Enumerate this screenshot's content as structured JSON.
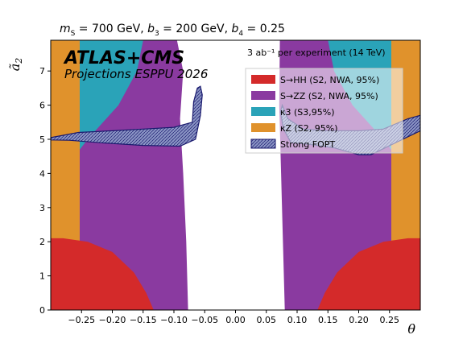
{
  "header": {
    "params": "mS = 700 GeV, b3 = 200 GeV, b4 = 0.25"
  },
  "colors": {
    "s_hh": "#d42a2a",
    "s_zz": "#8a3aa0",
    "kappa3": "#2aa3b8",
    "kappaz": "#e0922c",
    "fopt_fill": "#8a94c4",
    "fopt_edge": "#1a1a6e"
  },
  "chart_data": {
    "type": "area",
    "title": "mS = 700 GeV, b3 = 200 GeV, b4 = 0.25",
    "experiment": "ATLAS+CMS",
    "subtitle": "Projections ESPPU 2026",
    "lumi_note": "3 ab⁻¹ per experiment (14 TeV)",
    "xlabel": "θ",
    "ylabel": "a2",
    "xlim": [
      -0.3,
      0.3
    ],
    "ylim": [
      0,
      7.9
    ],
    "xticks": [
      -0.25,
      -0.2,
      -0.15,
      -0.1,
      -0.05,
      0.0,
      0.05,
      0.1,
      0.15,
      0.2,
      0.25
    ],
    "xtick_labels": [
      "−0.25",
      "−0.20",
      "−0.15",
      "−0.10",
      "−0.05",
      "0.00",
      "0.05",
      "0.10",
      "0.15",
      "0.20",
      "0.25"
    ],
    "yticks": [
      0,
      1,
      2,
      3,
      4,
      5,
      6,
      7
    ],
    "ytick_labels": [
      "0",
      "1",
      "2",
      "3",
      "4",
      "5",
      "6",
      "7"
    ],
    "legend_position": "top-right",
    "series": [
      {
        "key": "s_zz",
        "name": "S→ZZ (S2, NWA, 95%)",
        "regions": [
          [
            [
              -0.3,
              0
            ],
            [
              -0.077,
              0
            ],
            [
              -0.08,
              2
            ],
            [
              -0.085,
              4
            ],
            [
              -0.09,
              5.6
            ],
            [
              -0.085,
              7
            ],
            [
              -0.095,
              7.9
            ],
            [
              -0.3,
              7.9
            ]
          ],
          [
            [
              0.3,
              0
            ],
            [
              0.08,
              0
            ],
            [
              0.077,
              2
            ],
            [
              0.074,
              4
            ],
            [
              0.071,
              6
            ],
            [
              0.072,
              7.9
            ],
            [
              0.3,
              7.9
            ]
          ]
        ]
      },
      {
        "key": "kappa3",
        "name": "κ3 (S3,95%)",
        "regions": [
          [
            [
              -0.3,
              7.9
            ],
            [
              -0.15,
              7.9
            ],
            [
              -0.16,
              7
            ],
            [
              -0.19,
              6
            ],
            [
              -0.24,
              5
            ],
            [
              -0.27,
              4.3
            ],
            [
              -0.3,
              4
            ]
          ],
          [
            [
              0.3,
              7.9
            ],
            [
              0.15,
              7.9
            ],
            [
              0.16,
              7
            ],
            [
              0.19,
              6
            ],
            [
              0.24,
              5
            ],
            [
              0.27,
              4.3
            ],
            [
              0.3,
              4
            ]
          ]
        ]
      },
      {
        "key": "kappaz",
        "name": "κZ (S2, 95%)",
        "regions": [
          [
            [
              -0.3,
              0
            ],
            [
              -0.253,
              0
            ],
            [
              -0.253,
              7.9
            ],
            [
              -0.3,
              7.9
            ]
          ],
          [
            [
              0.253,
              0
            ],
            [
              0.3,
              0
            ],
            [
              0.3,
              7.9
            ],
            [
              0.253,
              7.9
            ]
          ]
        ]
      },
      {
        "key": "s_hh",
        "name": "S→HH (S2, NWA, 95%)",
        "regions": [
          [
            [
              -0.3,
              0
            ],
            [
              -0.133,
              0
            ],
            [
              -0.145,
              0.5
            ],
            [
              -0.165,
              1.1
            ],
            [
              -0.2,
              1.7
            ],
            [
              -0.24,
              2.0
            ],
            [
              -0.28,
              2.1
            ],
            [
              -0.3,
              2.1
            ]
          ],
          [
            [
              0.3,
              0
            ],
            [
              0.133,
              0
            ],
            [
              0.145,
              0.5
            ],
            [
              0.165,
              1.1
            ],
            [
              0.2,
              1.7
            ],
            [
              0.24,
              2.0
            ],
            [
              0.28,
              2.1
            ],
            [
              0.3,
              2.1
            ]
          ]
        ]
      },
      {
        "key": "fopt",
        "name": "Strong FOPT",
        "regions": [
          [
            [
              -0.3,
              5.05
            ],
            [
              -0.255,
              5.2
            ],
            [
              -0.2,
              5.25
            ],
            [
              -0.15,
              5.3
            ],
            [
              -0.1,
              5.35
            ],
            [
              -0.07,
              5.5
            ],
            [
              -0.068,
              6.1
            ],
            [
              -0.062,
              6.5
            ],
            [
              -0.057,
              6.55
            ],
            [
              -0.054,
              6.3
            ],
            [
              -0.057,
              5.7
            ],
            [
              -0.065,
              5.0
            ],
            [
              -0.09,
              4.8
            ],
            [
              -0.15,
              4.82
            ],
            [
              -0.22,
              4.9
            ],
            [
              -0.27,
              4.97
            ],
            [
              -0.3,
              4.98
            ]
          ],
          [
            [
              0.076,
              6.0
            ],
            [
              0.085,
              5.6
            ],
            [
              0.11,
              5.3
            ],
            [
              0.15,
              5.25
            ],
            [
              0.2,
              5.25
            ],
            [
              0.24,
              5.3
            ],
            [
              0.28,
              5.6
            ],
            [
              0.3,
              5.7
            ],
            [
              0.3,
              5.25
            ],
            [
              0.26,
              4.9
            ],
            [
              0.22,
              4.55
            ],
            [
              0.2,
              4.55
            ],
            [
              0.16,
              4.75
            ],
            [
              0.12,
              4.85
            ],
            [
              0.09,
              4.9
            ],
            [
              0.078,
              5.3
            ],
            [
              0.073,
              5.8
            ]
          ]
        ]
      }
    ]
  }
}
